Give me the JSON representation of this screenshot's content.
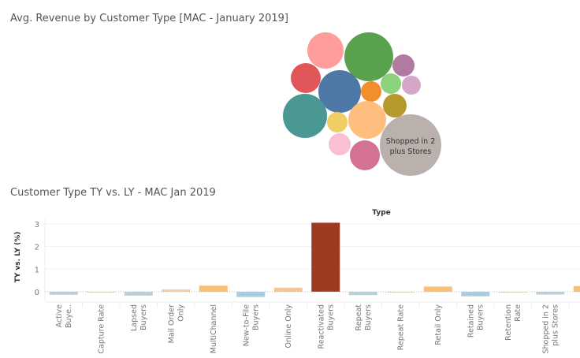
{
  "dashboard": {
    "bubble_title": "Avg. Revenue by Customer Type [MAC - January 2019]",
    "bar_title": "Customer Type TY vs. LY - MAC Jan 2019"
  },
  "chart_data": [
    {
      "type": "bubble",
      "title": "Avg. Revenue by Customer Type [MAC - January 2019]",
      "bubbles": [
        {
          "label": "",
          "color": "#ff9d9a",
          "relative_size": 23
        },
        {
          "label": "",
          "color": "#59a14f",
          "relative_size": 31
        },
        {
          "label": "",
          "color": "#b07aa1",
          "relative_size": 14
        },
        {
          "label": "",
          "color": "#e15759",
          "relative_size": 19
        },
        {
          "label": "",
          "color": "#4e79a7",
          "relative_size": 27
        },
        {
          "label": "",
          "color": "#f28e2b",
          "relative_size": 13
        },
        {
          "label": "",
          "color": "#8cd17d",
          "relative_size": 13
        },
        {
          "label": "",
          "color": "#d4a6c8",
          "relative_size": 12
        },
        {
          "label": "",
          "color": "#b6992d",
          "relative_size": 15
        },
        {
          "label": "",
          "color": "#499894",
          "relative_size": 28
        },
        {
          "label": "",
          "color": "#f1ce63",
          "relative_size": 13
        },
        {
          "label": "",
          "color": "#ffbe7d",
          "relative_size": 24
        },
        {
          "label": "Shopped in 2 plus Stores",
          "color": "#bab0ac",
          "relative_size": 39
        },
        {
          "label": "",
          "color": "#fabfd2",
          "relative_size": 14
        },
        {
          "label": "",
          "color": "#d37295",
          "relative_size": 19
        }
      ]
    },
    {
      "type": "bar",
      "title": "Customer Type TY vs. LY - MAC Jan 2019",
      "column_header": "Type",
      "ylabel": "TY vs. LY (%)",
      "ylim": [
        -0.4,
        3.05
      ],
      "yticks": [
        "0",
        "1",
        "2",
        "3"
      ],
      "grid": true,
      "categories": [
        "Active Buye..",
        "Capture Rate",
        "Lapsed Buyers",
        "Mail Order Only",
        "MultiChannel",
        "New-to-File Buyers",
        "Online Only",
        "Reactivated Buyers",
        "Repeat Buyers",
        "Repeat Rate",
        "Retail Only",
        "Retained Buyers",
        "Retention Rate",
        "Shopped in 2 plus Stores",
        ""
      ],
      "values": [
        -0.13,
        -0.01,
        -0.17,
        0.1,
        0.27,
        -0.23,
        0.18,
        3.05,
        -0.15,
        -0.01,
        0.23,
        -0.2,
        -0.01,
        -0.12,
        0.25
      ],
      "colors": [
        "#bccfd4",
        "#e0d3c0",
        "#bccfd4",
        "#f0cfa5",
        "#fbbf74",
        "#a8cddf",
        "#f9c48a",
        "#9e3a22",
        "#b8d1da",
        "#e0d3c0",
        "#fbbf74",
        "#a8cddf",
        "#e0d3c0",
        "#bccfd4",
        "#fbbf74"
      ]
    }
  ]
}
